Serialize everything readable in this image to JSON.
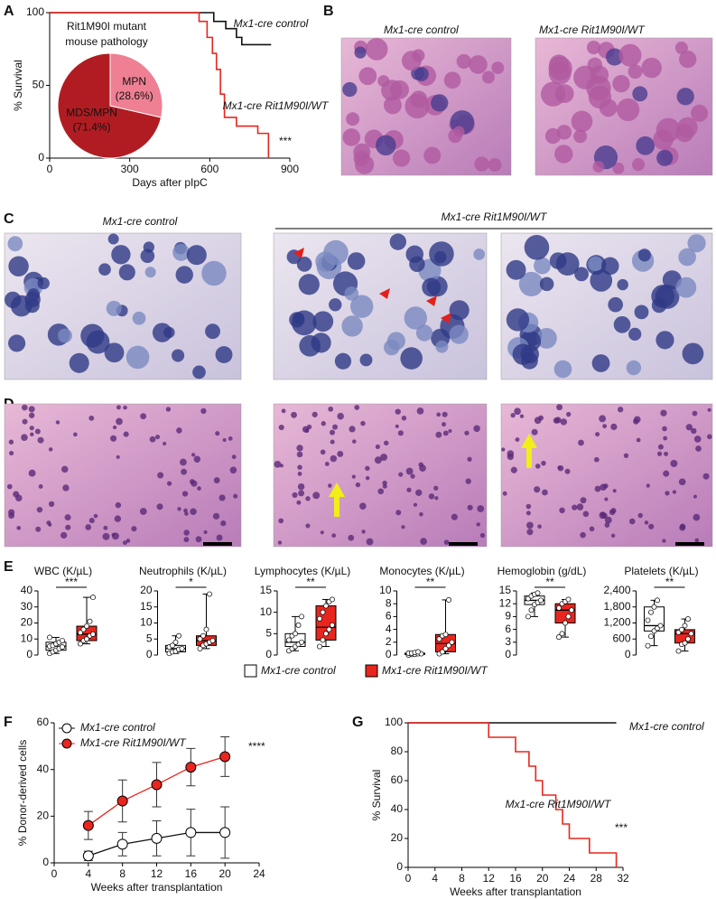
{
  "panels": [
    "A",
    "B",
    "C",
    "D",
    "E",
    "F",
    "G"
  ],
  "images": [
    {
      "caption": "Mx1-cre control"
    },
    {
      "caption": "Mx1-cre Rit1M90I/WT"
    },
    {
      "caption": "Mx1-cre control"
    },
    {
      "caption": "Mx1-cre Rit1M90I/WT"
    }
  ],
  "box_legend": {
    "labels": [
      "Mx1-cre control",
      "Mx1-cre Rit1M90I/WT"
    ],
    "colors": [
      "#ffffff",
      "#e8261e"
    ]
  },
  "chart_data": [
    {
      "type": "survival",
      "xlabel": "Days after pIpC",
      "ylabel": "% Survival",
      "xlim": [
        0,
        900
      ],
      "xticks": [
        0,
        300,
        600,
        900
      ],
      "ylim": [
        0,
        100
      ],
      "yticks": [
        0,
        50,
        100
      ],
      "annotation": "***",
      "series": [
        {
          "name": "Mx1-cre control",
          "color": "#111111",
          "x": [
            0,
            615,
            660,
            700,
            720,
            830
          ],
          "values": [
            100,
            94,
            89,
            83,
            78,
            78
          ]
        },
        {
          "name": "Mx1-cre Rit1M90I/WT",
          "color": "#e8261e",
          "x": [
            0,
            560,
            590,
            610,
            625,
            640,
            655,
            700,
            780,
            820
          ],
          "values": [
            100,
            94,
            83,
            72,
            61,
            44,
            28,
            22,
            17,
            0
          ]
        }
      ]
    },
    {
      "type": "pie",
      "title_lines": [
        "Rit1M90I mutant",
        "mouse pathology"
      ],
      "categories": [
        "MDS/MPN",
        "MPN"
      ],
      "values": [
        71.4,
        28.6
      ],
      "value_labels": [
        "(71.4%)",
        "(28.6%)"
      ],
      "colors": [
        "#b01c22",
        "#ef7f93"
      ]
    },
    {
      "type": "box",
      "title": "WBC (K/µL)",
      "ylim": [
        0,
        40
      ],
      "yticks": [
        0,
        10,
        20,
        30,
        40
      ],
      "annotation": "***",
      "groups": [
        {
          "stats": [
            1,
            3,
            5.5,
            8,
            11
          ],
          "points": [
            1,
            2,
            3,
            4,
            5,
            5.5,
            6,
            7,
            8,
            9,
            11
          ]
        },
        {
          "stats": [
            7,
            9,
            13,
            18,
            36
          ],
          "points": [
            7,
            9,
            10,
            12,
            13,
            14,
            16,
            18,
            21,
            36
          ]
        }
      ]
    },
    {
      "type": "box",
      "title": "Neutrophils (K/µL)",
      "ylim": [
        0,
        20
      ],
      "yticks": [
        0,
        5,
        10,
        15,
        20
      ],
      "annotation": "*",
      "groups": [
        {
          "stats": [
            0.5,
            1,
            2,
            3,
            6
          ],
          "points": [
            0.5,
            1,
            1.2,
            1.8,
            2,
            2.5,
            3,
            4,
            6
          ]
        },
        {
          "stats": [
            2,
            3,
            4.5,
            6,
            19
          ],
          "points": [
            2,
            3,
            3.5,
            4,
            4.5,
            5,
            6,
            8,
            19
          ]
        }
      ]
    },
    {
      "type": "box",
      "title": "Lymphocytes (K/µL)",
      "ylim": [
        0,
        15
      ],
      "yticks": [
        0,
        5,
        10,
        15
      ],
      "annotation": "**",
      "groups": [
        {
          "stats": [
            1,
            2,
            3,
            5,
            9
          ],
          "points": [
            1,
            1.5,
            2,
            2.5,
            3,
            3.5,
            4.5,
            5,
            7,
            9
          ]
        },
        {
          "stats": [
            2,
            3.5,
            6.5,
            11.5,
            13
          ],
          "points": [
            2,
            3.5,
            5,
            6,
            7,
            8.5,
            10,
            11.5,
            12.5,
            13
          ]
        }
      ]
    },
    {
      "type": "box",
      "title": "Monocytes (K/µL)",
      "ylim": [
        0,
        10
      ],
      "yticks": [
        0,
        2,
        4,
        6,
        8,
        10
      ],
      "annotation": "**",
      "groups": [
        {
          "stats": [
            0,
            0.1,
            0.2,
            0.3,
            0.5
          ],
          "points": [
            0,
            0.1,
            0.1,
            0.2,
            0.2,
            0.3,
            0.3,
            0.4,
            0.5
          ]
        },
        {
          "stats": [
            0.2,
            0.5,
            1.8,
            3.2,
            8.6
          ],
          "points": [
            0.2,
            0.5,
            1,
            1.5,
            2,
            2.5,
            3,
            3.2,
            8.6
          ]
        }
      ]
    },
    {
      "type": "box",
      "title": "Hemoglobin (g/dL)",
      "ylim": [
        0,
        15
      ],
      "yticks": [
        0,
        3,
        6,
        9,
        12,
        15
      ],
      "annotation": "**",
      "groups": [
        {
          "stats": [
            9,
            11.8,
            12.8,
            13.8,
            14.5
          ],
          "points": [
            9,
            10.5,
            11.8,
            12.3,
            12.8,
            13.2,
            13.8,
            14.2,
            14.5
          ]
        },
        {
          "stats": [
            4.2,
            7.5,
            10.5,
            12,
            13
          ],
          "points": [
            4.2,
            5,
            7.5,
            9,
            10.5,
            11,
            12,
            12.5,
            13
          ]
        }
      ]
    },
    {
      "type": "box",
      "title": "Platelets (K/µL)",
      "ylim": [
        0,
        2400
      ],
      "yticks": [
        0,
        600,
        {
          "value": 1200,
          "label": "1,200"
        },
        {
          "value": 1800,
          "label": "1,800"
        },
        {
          "value": 2400,
          "label": "2,400"
        }
      ],
      "annotation": "**",
      "groups": [
        {
          "stats": [
            350,
            900,
            1100,
            1800,
            2050
          ],
          "points": [
            350,
            700,
            900,
            1000,
            1100,
            1300,
            1600,
            1800,
            2050
          ]
        },
        {
          "stats": [
            150,
            450,
            800,
            950,
            1350
          ],
          "points": [
            150,
            400,
            450,
            600,
            800,
            850,
            950,
            1100,
            1350
          ]
        }
      ]
    },
    {
      "type": "line",
      "xlabel": "Weeks after transplantation",
      "ylabel": "% Donor-derived cells",
      "xlim": [
        0,
        24
      ],
      "xticks": [
        0,
        4,
        8,
        12,
        16,
        20,
        24
      ],
      "ylim": [
        0,
        60
      ],
      "yticks": [
        0,
        20,
        40,
        60
      ],
      "annotation": "****",
      "x": [
        4,
        8,
        12,
        16,
        20
      ],
      "series": [
        {
          "name": "Mx1-cre control",
          "color": "#111111",
          "marker_fill": "#ffffff",
          "values": [
            3,
            8,
            10.5,
            13,
            13
          ],
          "errors": [
            2,
            5,
            7.5,
            10,
            11
          ]
        },
        {
          "name": "Mx1-cre Rit1M90I/WT",
          "color": "#e8261e",
          "marker_fill": "#e8261e",
          "values": [
            16,
            26.5,
            33.5,
            41,
            45.5
          ],
          "errors": [
            6,
            9,
            9.5,
            8,
            8.5
          ]
        }
      ]
    },
    {
      "type": "survival",
      "xlabel": "Weeks after transplantation",
      "ylabel": "% Survival",
      "xlim": [
        0,
        32
      ],
      "xticks": [
        0,
        4,
        8,
        12,
        16,
        20,
        24,
        28,
        32
      ],
      "ylim": [
        0,
        100
      ],
      "yticks": [
        0,
        20,
        40,
        60,
        80,
        100
      ],
      "annotation": "***",
      "series": [
        {
          "name": "Mx1-cre control",
          "color": "#111111",
          "x": [
            0,
            31
          ],
          "values": [
            100,
            100
          ]
        },
        {
          "name": "Mx1-cre Rit1M90I/WT",
          "color": "#e8261e",
          "x": [
            0,
            12,
            16,
            18,
            19,
            20,
            22,
            23,
            24,
            25,
            27,
            31
          ],
          "values": [
            100,
            90,
            80,
            70,
            60,
            50,
            40,
            30,
            20,
            20,
            10,
            0
          ]
        }
      ]
    }
  ]
}
